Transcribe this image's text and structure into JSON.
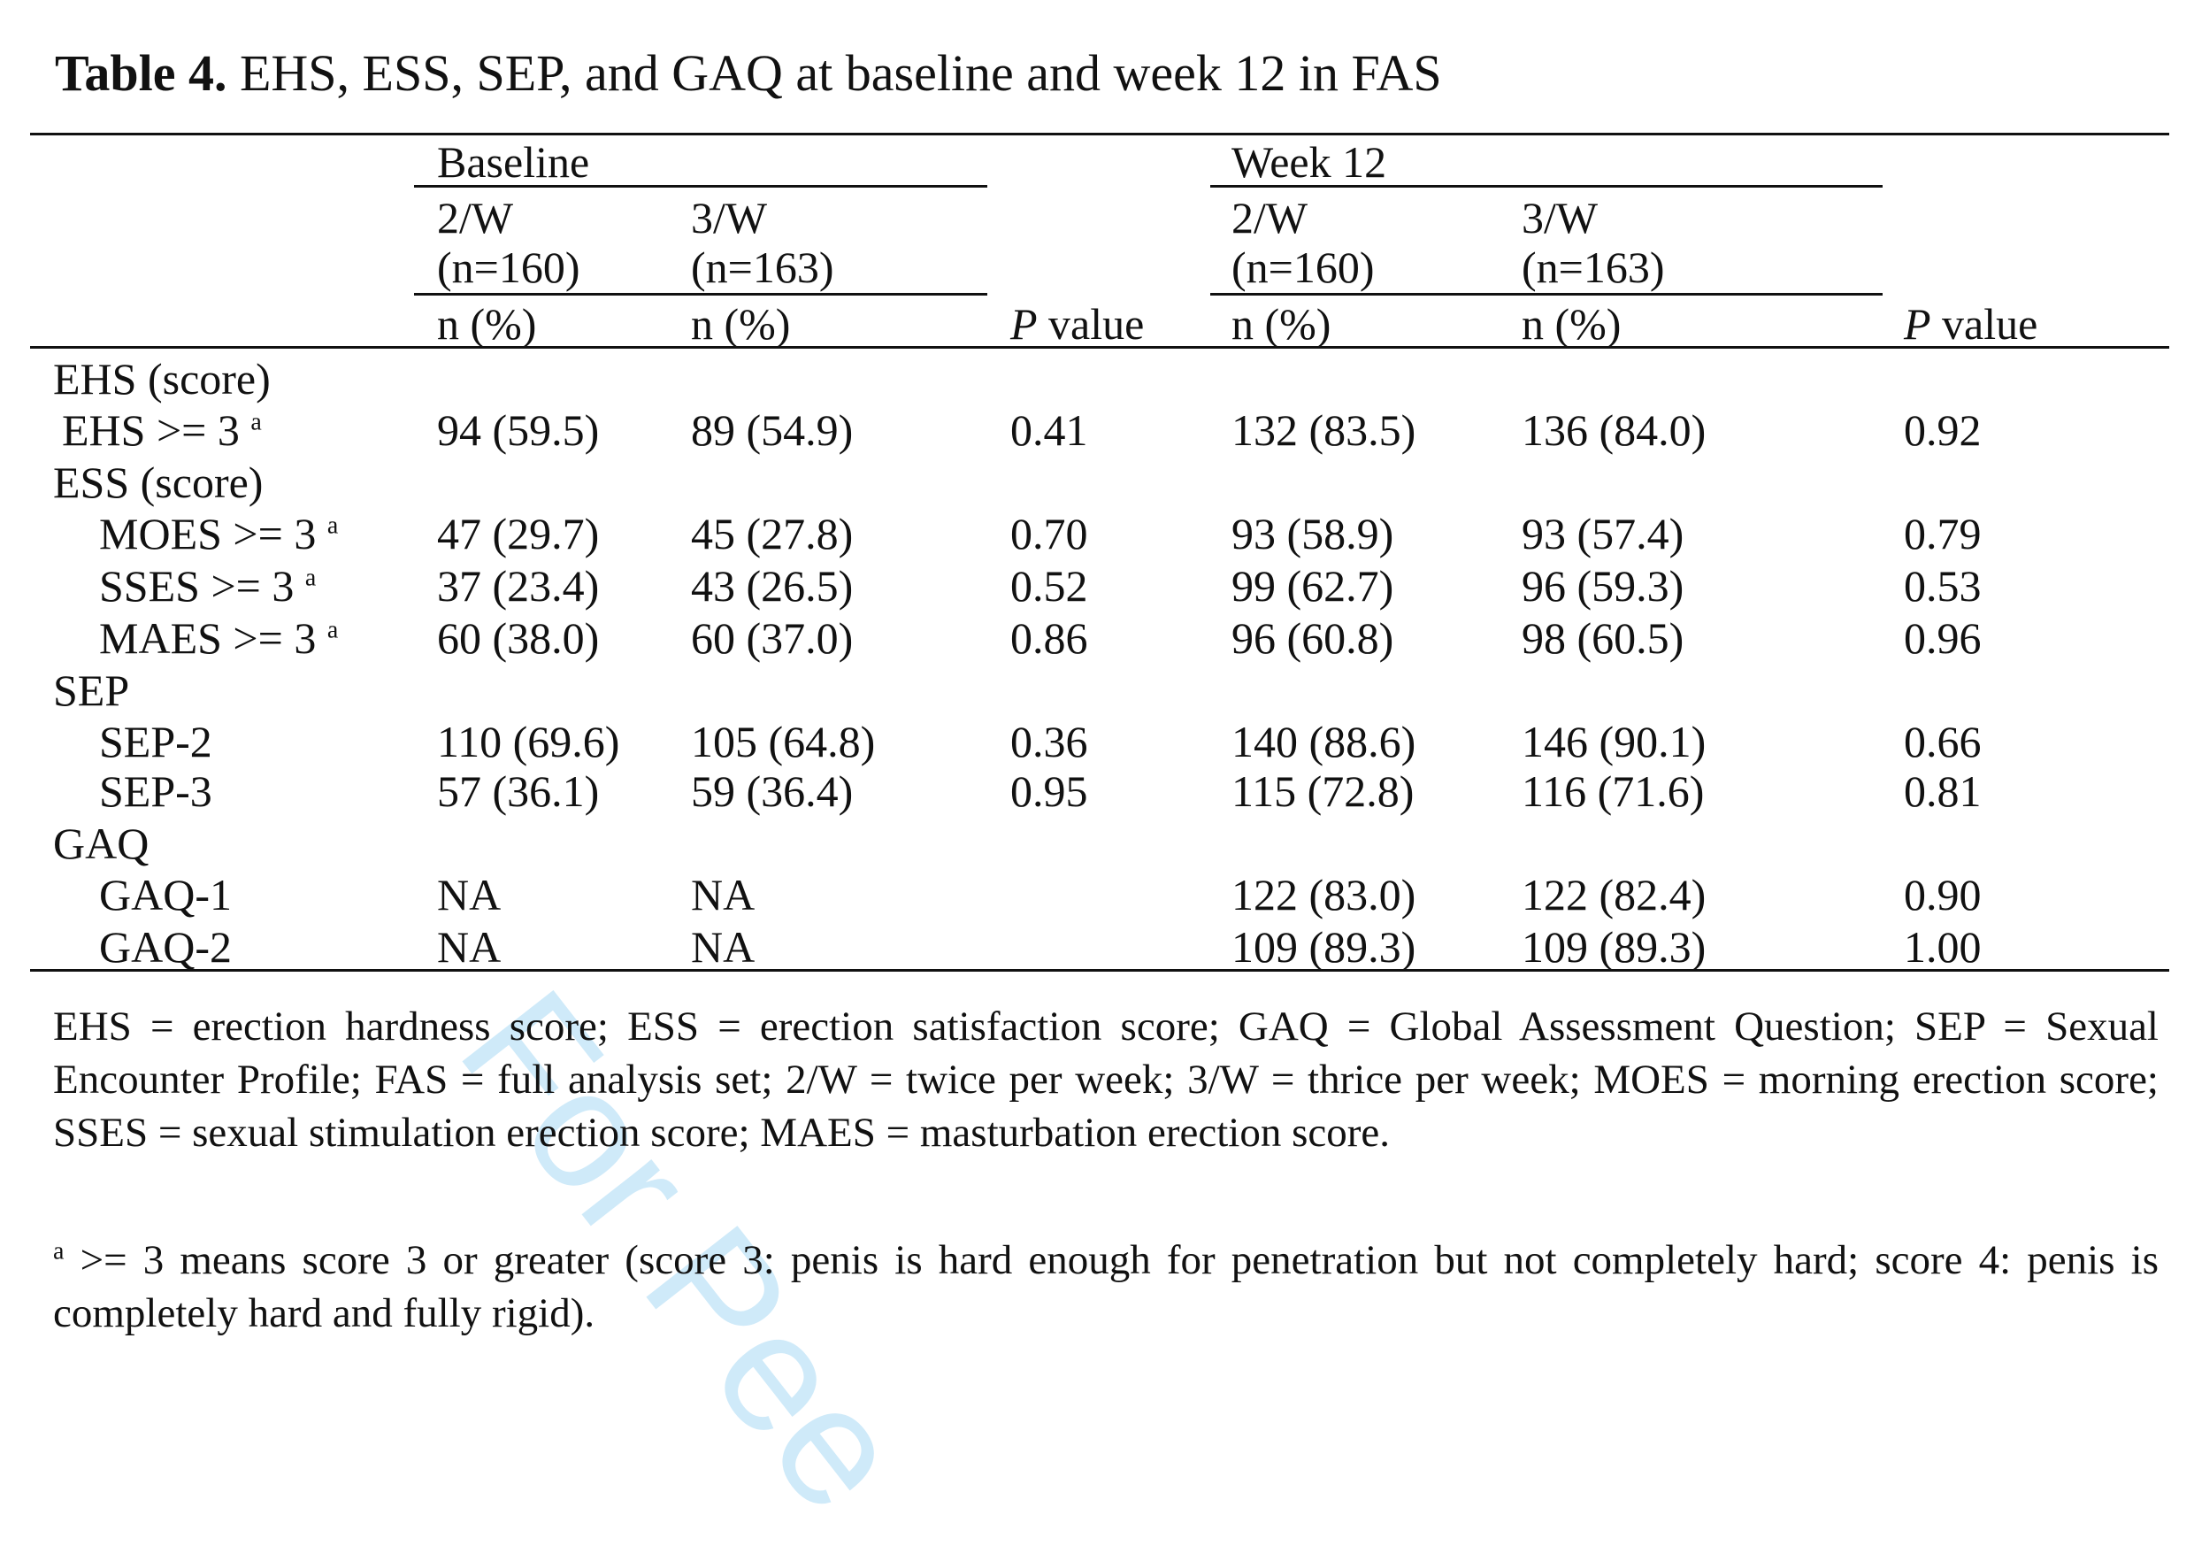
{
  "title": {
    "label": "Table 4.",
    "text": " EHS, ESS, SEP, and GAQ at baseline and week 12 in FAS"
  },
  "header": {
    "group_baseline": "Baseline",
    "group_week12": "Week 12",
    "col_2w": "2/W",
    "col_3w": "3/W",
    "n160": "(n=160)",
    "n163": "(n=163)",
    "n_pct": "n (%)",
    "p_italic": "P",
    "p_rest": " value"
  },
  "rows": [
    {
      "label": "EHS (score)",
      "indent": 0,
      "sup": ""
    },
    {
      "label": "EHS >= 3",
      "indent": 1,
      "sup": "a",
      "b2": "94 (59.5)",
      "b3": "89 (54.9)",
      "p1": "0.41",
      "w2": "132 (83.5)",
      "w3": "136 (84.0)",
      "p2": "0.92"
    },
    {
      "label": "ESS (score)",
      "indent": 0,
      "sup": ""
    },
    {
      "label": "MOES >= 3",
      "indent": 2,
      "sup": "a",
      "b2": "47 (29.7)",
      "b3": "45 (27.8)",
      "p1": "0.70",
      "w2": "93 (58.9)",
      "w3": "93 (57.4)",
      "p2": "0.79"
    },
    {
      "label": "SSES >= 3",
      "indent": 2,
      "sup": "a",
      "b2": "37 (23.4)",
      "b3": "43 (26.5)",
      "p1": "0.52",
      "w2": "99 (62.7)",
      "w3": "96 (59.3)",
      "p2": "0.53"
    },
    {
      "label": "MAES >= 3",
      "indent": 2,
      "sup": "a",
      "b2": "60 (38.0)",
      "b3": "60 (37.0)",
      "p1": "0.86",
      "w2": "96 (60.8)",
      "w3": "98 (60.5)",
      "p2": "0.96"
    },
    {
      "label": "SEP",
      "indent": 0,
      "sup": ""
    },
    {
      "label": "SEP-2",
      "indent": 2,
      "sup": "",
      "b2": "110 (69.6)",
      "b3": "105 (64.8)",
      "p1": "0.36",
      "w2": "140 (88.6)",
      "w3": "146 (90.1)",
      "p2": "0.66"
    },
    {
      "label": "SEP-3",
      "indent": 2,
      "sup": "",
      "b2": "57 (36.1)",
      "b3": "59 (36.4)",
      "p1": "0.95",
      "w2": "115 (72.8)",
      "w3": "116 (71.6)",
      "p2": "0.81"
    },
    {
      "label": "GAQ",
      "indent": 0,
      "sup": ""
    },
    {
      "label": "GAQ-1",
      "indent": 2,
      "sup": "",
      "b2": "NA",
      "b3": "NA",
      "p1": "",
      "w2": "122 (83.0)",
      "w3": "122 (82.4)",
      "p2": "0.90"
    },
    {
      "label": "GAQ-2",
      "indent": 2,
      "sup": "",
      "b2": "NA",
      "b3": "NA",
      "p1": "",
      "w2": "109 (89.3)",
      "w3": "109 (89.3)",
      "p2": "1.00"
    }
  ],
  "footnotes": {
    "abbrev": "EHS = erection hardness score; ESS = erection satisfaction score; GAQ = Global Assessment Question; SEP = Sexual Encounter Profile; FAS = full analysis set; 2/W = twice per week; 3/W = thrice per week; MOES = morning erection score; SSES = sexual stimulation erection score; MAES = masturbation erection score.",
    "a_mark": "a",
    "a_text": " >= 3 means score 3 or greater (score 3: penis is hard enough for penetration but not completely hard; score 4: penis is completely hard and fully rigid)."
  },
  "watermark": "For Pee"
}
